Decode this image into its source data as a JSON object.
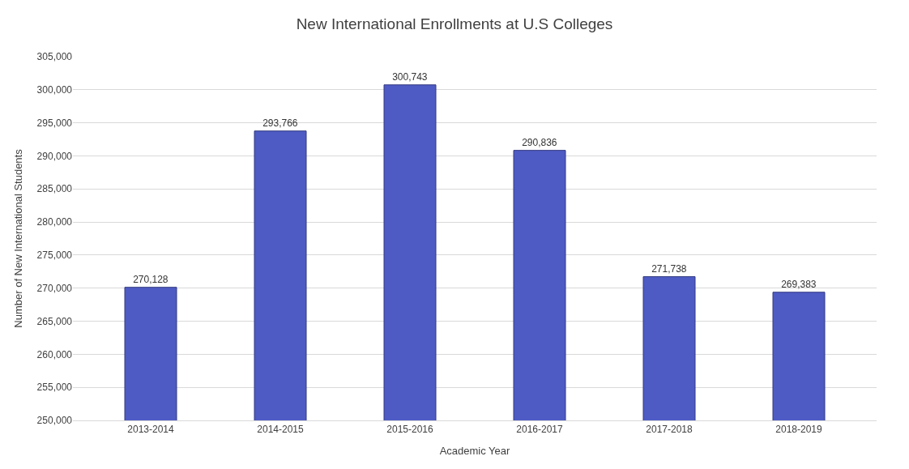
{
  "chart_data": {
    "type": "bar",
    "title": "New International Enrollments at U.S Colleges",
    "xlabel": "Academic Year",
    "ylabel": "Number of New International Students",
    "categories": [
      "2013-2014",
      "2014-2015",
      "2015-2016",
      "2016-2017",
      "2017-2018",
      "2018-2019"
    ],
    "values": [
      270128,
      293766,
      300743,
      290836,
      271738,
      269383
    ],
    "color": "#4f5bc4",
    "value_labels": [
      "270,128",
      "293,766",
      "300,743",
      "290,836",
      "271,738",
      "269,383"
    ],
    "ylim": [
      250000,
      305000
    ],
    "yticks": [
      {
        "value": 250000,
        "label": "250,000"
      },
      {
        "value": 255000,
        "label": "255,000"
      },
      {
        "value": 260000,
        "label": "260,000"
      },
      {
        "value": 265000,
        "label": "265,000"
      },
      {
        "value": 270000,
        "label": "270,000"
      },
      {
        "value": 275000,
        "label": "275,000"
      },
      {
        "value": 280000,
        "label": "280,000"
      },
      {
        "value": 285000,
        "label": "285,000"
      },
      {
        "value": 290000,
        "label": "290,000"
      },
      {
        "value": 295000,
        "label": "295,000"
      },
      {
        "value": 300000,
        "label": "300,000"
      },
      {
        "value": 305000,
        "label": "305,000"
      }
    ],
    "grid": "y"
  }
}
